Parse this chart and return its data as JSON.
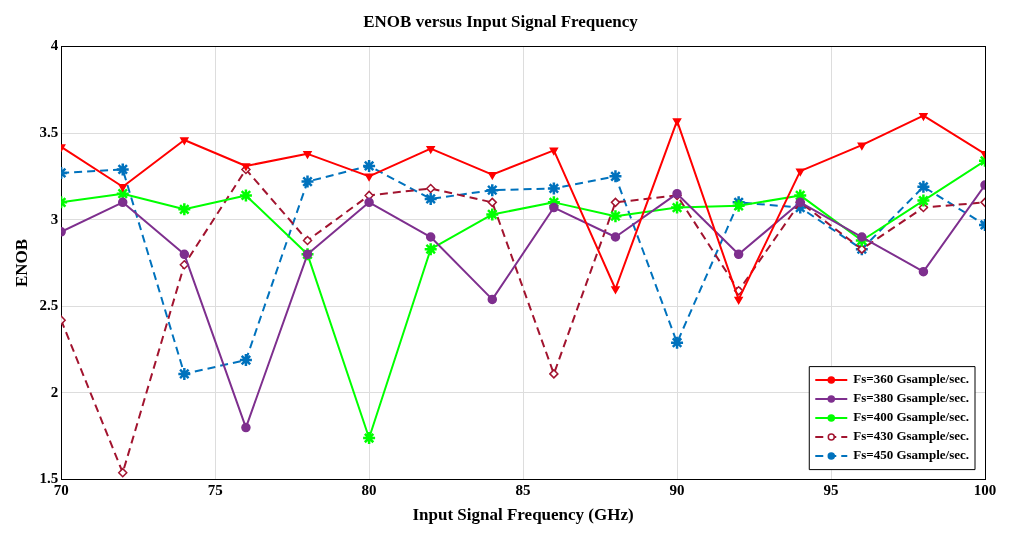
{
  "chart_data": {
    "type": "line",
    "title": "ENOB versus Input Signal Frequency",
    "xlabel": "Input Signal Frequency (GHz)",
    "ylabel": "ENOB",
    "x": [
      70,
      72,
      74,
      76,
      78,
      80,
      82,
      84,
      86,
      88,
      90,
      92,
      94,
      96,
      98,
      100
    ],
    "xlim": [
      70,
      100
    ],
    "xticks": [
      70,
      75,
      80,
      85,
      90,
      95,
      100
    ],
    "ylim": [
      1.5,
      4
    ],
    "yticks": [
      1.5,
      2,
      2.5,
      3,
      3.5,
      4
    ],
    "grid": true,
    "legend": "bottom right",
    "series": [
      {
        "name": "Fs=360 Gsample/sec.",
        "color": "#ff0000",
        "marker": "triangle",
        "line_style": "solid",
        "values": [
          3.42,
          3.19,
          3.46,
          3.31,
          3.38,
          3.25,
          3.41,
          3.26,
          3.4,
          2.6,
          3.57,
          2.54,
          3.28,
          3.43,
          3.6,
          3.38
        ]
      },
      {
        "name": "Fs=380 Gsample/sec.",
        "color": "#7e2f8e",
        "marker": "circle",
        "line_style": "solid",
        "values": [
          2.93,
          3.1,
          2.8,
          1.8,
          2.8,
          3.1,
          2.9,
          2.54,
          3.07,
          2.9,
          3.15,
          2.8,
          3.1,
          2.9,
          2.7,
          3.2
        ]
      },
      {
        "name": "Fs=400 Gsample/sec.",
        "color": "#00ff00",
        "marker": "cross",
        "line_style": "solid",
        "values": [
          3.1,
          3.15,
          3.06,
          3.14,
          2.8,
          1.74,
          2.83,
          3.03,
          3.1,
          3.02,
          3.07,
          3.08,
          3.14,
          2.88,
          3.11,
          3.34
        ]
      },
      {
        "name": "Fs=430 Gsample/sec.",
        "color": "#a2142f",
        "marker": "diamond",
        "line_style": "dashed",
        "values": [
          2.42,
          1.54,
          2.74,
          3.29,
          2.88,
          3.14,
          3.18,
          3.1,
          2.11,
          3.1,
          3.14,
          2.59,
          3.1,
          2.83,
          3.07,
          3.1
        ]
      },
      {
        "name": "Fs=450 Gsample/sec.",
        "color": "#0072bd",
        "marker": "cross",
        "line_style": "dashed",
        "values": [
          3.27,
          3.29,
          2.11,
          2.19,
          3.22,
          3.31,
          3.12,
          3.17,
          3.18,
          3.25,
          2.29,
          3.1,
          3.07,
          2.83,
          3.19,
          2.97
        ]
      }
    ]
  }
}
